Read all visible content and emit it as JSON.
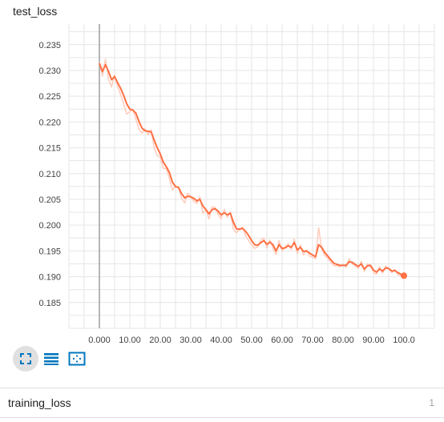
{
  "card": {
    "title": "test_loss"
  },
  "toolbar": {
    "buttons": [
      {
        "icon": "fullscreen-icon"
      },
      {
        "icon": "list-icon"
      },
      {
        "icon": "fit-domain-icon"
      }
    ]
  },
  "section": {
    "title": "training_loss",
    "count": "1"
  },
  "colors": {
    "line": "#ff7043",
    "line_raw": "#ffccbc",
    "grid": "#e6e6e6",
    "zero_line": "#9e9e9e",
    "accent": "#0277bd"
  },
  "chart_data": {
    "type": "line",
    "title": "test_loss",
    "xlabel": "",
    "ylabel": "",
    "xlim": [
      -10,
      110
    ],
    "ylim": [
      0.18,
      0.239
    ],
    "x_ticks": [
      "0.000",
      "10.00",
      "20.00",
      "30.00",
      "40.00",
      "50.00",
      "60.00",
      "70.00",
      "80.00",
      "90.00",
      "100.0"
    ],
    "y_ticks": [
      "0.185",
      "0.190",
      "0.195",
      "0.200",
      "0.205",
      "0.210",
      "0.215",
      "0.220",
      "0.225",
      "0.230",
      "0.235"
    ],
    "grid": true,
    "series": [
      {
        "x": [
          0,
          1,
          2,
          3,
          4,
          5,
          6,
          7,
          8,
          9,
          10,
          11,
          12,
          13,
          14,
          15,
          16,
          17,
          18,
          19,
          20,
          21,
          22,
          23,
          24,
          25,
          26,
          27,
          28,
          29,
          30,
          31,
          32,
          33,
          34,
          35,
          36,
          37,
          38,
          39,
          40,
          41,
          42,
          43,
          44,
          45,
          46,
          47,
          48,
          49,
          50,
          51,
          52,
          53,
          54,
          55,
          56,
          57,
          58,
          59,
          60,
          61,
          62,
          63,
          64,
          65,
          66,
          67,
          68,
          69,
          70,
          71,
          72,
          73,
          74,
          75,
          76,
          77,
          78,
          79,
          80,
          81,
          82,
          83,
          84,
          85,
          86,
          87,
          88,
          89,
          90,
          91,
          92,
          93,
          94,
          95,
          96,
          97,
          98,
          99,
          100
        ],
        "values": [
          0.2314,
          0.2298,
          0.2311,
          0.2298,
          0.2282,
          0.2288,
          0.2276,
          0.2265,
          0.2251,
          0.2235,
          0.2225,
          0.2223,
          0.2217,
          0.2201,
          0.2188,
          0.2183,
          0.2182,
          0.2181,
          0.2165,
          0.215,
          0.2138,
          0.2122,
          0.2113,
          0.2102,
          0.2083,
          0.2075,
          0.2073,
          0.2061,
          0.2053,
          0.2056,
          0.2055,
          0.2052,
          0.2047,
          0.205,
          0.2037,
          0.203,
          0.2022,
          0.203,
          0.2032,
          0.2027,
          0.202,
          0.2024,
          0.202,
          0.2023,
          0.2006,
          0.1993,
          0.1992,
          0.1994,
          0.1988,
          0.198,
          0.197,
          0.1962,
          0.1961,
          0.1966,
          0.197,
          0.1963,
          0.1967,
          0.1962,
          0.195,
          0.1962,
          0.1955,
          0.1956,
          0.196,
          0.1957,
          0.1966,
          0.1952,
          0.1957,
          0.1949,
          0.195,
          0.1946,
          0.1942,
          0.1939,
          0.1962,
          0.1957,
          0.1947,
          0.194,
          0.1933,
          0.1926,
          0.1924,
          0.1922,
          0.1922,
          0.1922,
          0.1929,
          0.1928,
          0.1924,
          0.192,
          0.1925,
          0.1915,
          0.1921,
          0.1922,
          0.1913,
          0.1909,
          0.1915,
          0.1911,
          0.1917,
          0.1916,
          0.1911,
          0.1912,
          0.1908,
          0.1905,
          0.1902
        ]
      }
    ],
    "raw_series": [
      {
        "x": [
          0,
          1,
          2,
          3,
          4,
          5,
          6,
          7,
          8,
          9,
          10,
          11,
          12,
          13,
          14,
          15,
          16,
          17,
          18,
          19,
          20,
          21,
          22,
          23,
          24,
          25,
          26,
          27,
          28,
          29,
          30,
          31,
          32,
          33,
          34,
          35,
          36,
          37,
          38,
          39,
          40,
          41,
          42,
          43,
          44,
          45,
          46,
          47,
          48,
          49,
          50,
          51,
          52,
          53,
          54,
          55,
          56,
          57,
          58,
          59,
          60,
          61,
          62,
          63,
          64,
          65,
          66,
          67,
          68,
          69,
          70,
          71,
          72,
          73,
          74,
          75,
          76,
          77,
          78,
          79,
          80,
          81,
          82,
          83,
          84,
          85,
          86,
          87,
          88,
          89,
          90,
          91,
          92,
          93,
          94,
          95,
          96,
          97,
          98,
          99,
          100
        ],
        "values": [
          0.2316,
          0.2289,
          0.2322,
          0.2283,
          0.2268,
          0.2292,
          0.2268,
          0.2253,
          0.2234,
          0.2215,
          0.222,
          0.2225,
          0.2205,
          0.2186,
          0.2178,
          0.2187,
          0.2175,
          0.2185,
          0.215,
          0.2135,
          0.2131,
          0.211,
          0.211,
          0.209,
          0.2068,
          0.2075,
          0.2073,
          0.2052,
          0.2043,
          0.2062,
          0.2055,
          0.2046,
          0.2042,
          0.2055,
          0.2023,
          0.203,
          0.2012,
          0.2036,
          0.2034,
          0.2021,
          0.2012,
          0.2031,
          0.2015,
          0.2026,
          0.1993,
          0.1985,
          0.1992,
          0.1996,
          0.198,
          0.197,
          0.1962,
          0.1955,
          0.1958,
          0.1971,
          0.1975,
          0.1955,
          0.1971,
          0.1955,
          0.1943,
          0.197,
          0.195,
          0.1958,
          0.1964,
          0.1953,
          0.1973,
          0.1945,
          0.1962,
          0.1942,
          0.1952,
          0.194,
          0.1938,
          0.1935,
          0.1995,
          0.1953,
          0.1941,
          0.1936,
          0.1928,
          0.1921,
          0.1922,
          0.1919,
          0.1924,
          0.1918,
          0.1935,
          0.1925,
          0.192,
          0.1916,
          0.193,
          0.191,
          0.1925,
          0.1922,
          0.1908,
          0.1905,
          0.1919,
          0.1907,
          0.1921,
          0.1915,
          0.1908,
          0.1914,
          0.1904,
          0.1902,
          0.19
        ]
      }
    ]
  }
}
